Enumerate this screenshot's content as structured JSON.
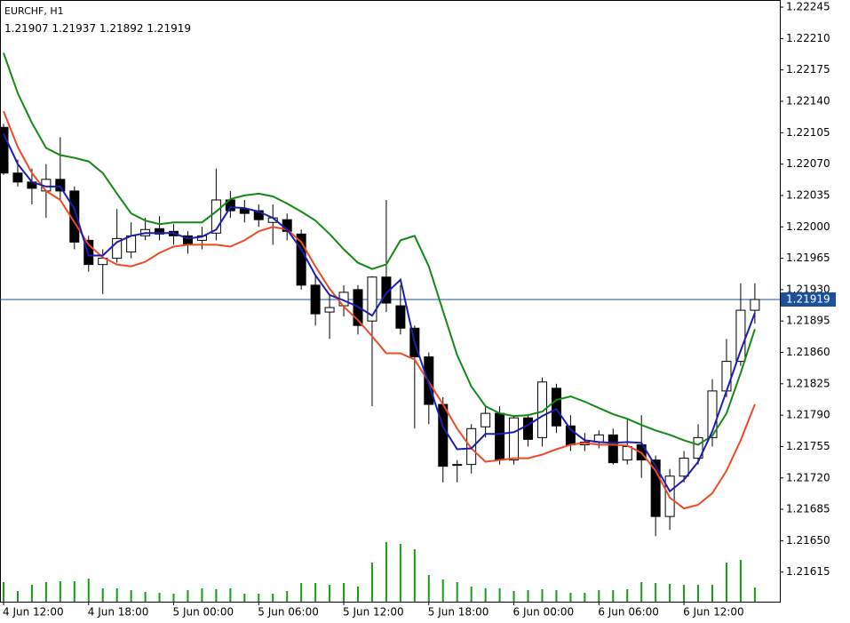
{
  "chart_data": {
    "type": "candlestick",
    "title": "EURCHF, H1",
    "categories": [
      "4 Jun 12:00",
      null,
      null,
      null,
      null,
      null,
      "4 Jun 18:00",
      null,
      null,
      null,
      null,
      null,
      "5 Jun 00:00",
      null,
      null,
      null,
      null,
      null,
      "5 Jun 06:00",
      null,
      null,
      null,
      null,
      null,
      "5 Jun 12:00",
      null,
      null,
      null,
      null,
      null,
      "5 Jun 18:00",
      null,
      null,
      null,
      null,
      null,
      "6 Jun 00:00",
      null,
      null,
      null,
      null,
      null,
      "6 Jun 06:00",
      null,
      null,
      null,
      null,
      null,
      "6 Jun 12:00",
      null,
      null,
      null,
      null,
      null
    ],
    "open": [
      1.22111,
      1.2206,
      1.2205,
      1.2204,
      1.22053,
      1.2204,
      1.21985,
      1.21958,
      1.21965,
      1.21972,
      1.2199,
      1.21998,
      1.21995,
      1.2199,
      1.21985,
      1.21993,
      1.2203,
      1.2202,
      1.22018,
      1.22005,
      1.22008,
      1.21992,
      1.21935,
      1.21905,
      1.21912,
      1.2193,
      1.21895,
      1.21944,
      1.21912,
      1.21887,
      1.21855,
      1.21802,
      1.21735,
      1.21735,
      1.21777,
      1.21792,
      1.2174,
      1.21787,
      1.21765,
      1.2182,
      1.21778,
      1.21757,
      1.2176,
      1.21768,
      1.2174,
      1.21757,
      1.2174,
      1.21677,
      1.21722,
      1.21742,
      1.21765,
      1.21817,
      1.2185,
      1.21907
    ],
    "high": [
      1.22115,
      1.22075,
      1.22065,
      1.2207,
      1.221,
      1.22045,
      1.2199,
      1.21975,
      1.2202,
      1.22005,
      1.2201,
      1.22012,
      1.22003,
      1.21995,
      1.22,
      1.22065,
      1.2204,
      1.2203,
      1.22025,
      1.22025,
      1.22015,
      1.21997,
      1.21945,
      1.21925,
      1.21935,
      1.21935,
      1.21945,
      1.2203,
      1.21935,
      1.2189,
      1.2186,
      1.2181,
      1.2174,
      1.2178,
      1.218,
      1.218,
      1.2179,
      1.2179,
      1.21832,
      1.21825,
      1.2179,
      1.2177,
      1.21773,
      1.21775,
      1.21785,
      1.2179,
      1.21745,
      1.2173,
      1.2175,
      1.2178,
      1.2183,
      1.21875,
      1.21937,
      1.21937
    ],
    "low": [
      1.22058,
      1.22045,
      1.22025,
      1.2201,
      1.2203,
      1.21975,
      1.2195,
      1.21925,
      1.2196,
      1.21965,
      1.21985,
      1.21985,
      1.2198,
      1.2197,
      1.21975,
      1.21985,
      1.2201,
      1.22005,
      1.22,
      1.2198,
      1.21985,
      1.2193,
      1.2189,
      1.21875,
      1.219,
      1.2188,
      1.218,
      1.21905,
      1.2188,
      1.21775,
      1.2178,
      1.21715,
      1.21715,
      1.21725,
      1.21765,
      1.21735,
      1.21735,
      1.21755,
      1.21755,
      1.2177,
      1.2175,
      1.2175,
      1.21753,
      1.21735,
      1.21735,
      1.2172,
      1.21655,
      1.21662,
      1.21715,
      1.21735,
      1.21755,
      1.2181,
      1.21845,
      1.21892
    ],
    "close": [
      1.2206,
      1.2205,
      1.22043,
      1.22053,
      1.2204,
      1.21983,
      1.21958,
      1.21965,
      1.21987,
      1.2199,
      1.21997,
      1.21992,
      1.2199,
      1.2198,
      1.2199,
      1.2203,
      1.22018,
      1.22015,
      1.22008,
      1.2201,
      1.21995,
      1.21935,
      1.21903,
      1.2191,
      1.21927,
      1.2189,
      1.21944,
      1.21915,
      1.21887,
      1.21855,
      1.21802,
      1.21733,
      1.21735,
      1.21775,
      1.21792,
      1.2174,
      1.21787,
      1.21763,
      1.21827,
      1.21778,
      1.21757,
      1.2176,
      1.21768,
      1.21737,
      1.21755,
      1.2174,
      1.21677,
      1.21722,
      1.21742,
      1.21765,
      1.21817,
      1.2185,
      1.21907,
      1.21919
    ],
    "series": [
      {
        "color": "#138a13",
        "values": [
          1.22194,
          1.22149,
          1.22116,
          1.22088,
          1.2208,
          1.22077,
          1.22073,
          1.2206,
          1.22037,
          1.22015,
          1.22007,
          1.22003,
          1.22005,
          1.22005,
          1.22005,
          1.22017,
          1.22031,
          1.22035,
          1.22037,
          1.22034,
          1.22026,
          1.22017,
          1.22007,
          1.21992,
          1.21975,
          1.2196,
          1.21953,
          1.21958,
          1.21985,
          1.2199,
          1.21956,
          1.21906,
          1.21857,
          1.21822,
          1.218,
          1.21792,
          1.21789,
          1.2179,
          1.21794,
          1.21807,
          1.21811,
          1.21805,
          1.21798,
          1.21791,
          1.21786,
          1.21779,
          1.21773,
          1.21768,
          1.21762,
          1.21757,
          1.21767,
          1.21792,
          1.21837,
          1.21886
        ]
      },
      {
        "color": "#ef4a24",
        "values": [
          1.22129,
          1.22089,
          1.2206,
          1.2204,
          1.2203,
          1.22005,
          1.2198,
          1.21966,
          1.21958,
          1.21956,
          1.21961,
          1.21971,
          1.21978,
          1.2198,
          1.2198,
          1.2198,
          1.21978,
          1.21985,
          1.21995,
          1.22,
          1.21997,
          1.21983,
          1.21956,
          1.21931,
          1.21911,
          1.21896,
          1.21878,
          1.21859,
          1.21859,
          1.21852,
          1.21827,
          1.21802,
          1.21775,
          1.21753,
          1.21738,
          1.2174,
          1.21742,
          1.21742,
          1.21746,
          1.21752,
          1.21757,
          1.21759,
          1.21757,
          1.21757,
          1.21756,
          1.21748,
          1.21728,
          1.21698,
          1.21686,
          1.2169,
          1.21703,
          1.21728,
          1.21762,
          1.21802
        ]
      },
      {
        "color": "#1d1db0",
        "values": [
          1.22104,
          1.2207,
          1.2205,
          1.22045,
          1.22045,
          1.2202,
          1.21968,
          1.21968,
          1.21983,
          1.2199,
          1.21993,
          1.21993,
          1.21993,
          1.21987,
          1.21989,
          1.21997,
          1.22022,
          1.22021,
          1.22017,
          1.2201,
          1.21997,
          1.21975,
          1.21946,
          1.21924,
          1.21918,
          1.21911,
          1.21901,
          1.21926,
          1.21941,
          1.21871,
          1.21825,
          1.21777,
          1.21752,
          1.21753,
          1.21769,
          1.21769,
          1.21771,
          1.21779,
          1.21789,
          1.21797,
          1.21774,
          1.21762,
          1.2176,
          1.21759,
          1.2176,
          1.21759,
          1.21733,
          1.21705,
          1.21718,
          1.21738,
          1.21772,
          1.21817,
          1.21862,
          1.21904
        ]
      }
    ],
    "volume": {
      "color": "#11a011",
      "values": [
        22,
        12,
        19,
        22,
        23,
        23,
        26,
        15,
        15,
        13,
        11,
        10,
        9,
        13,
        15,
        14,
        15,
        9,
        9,
        9,
        12,
        21,
        21,
        19,
        21,
        17,
        44,
        67,
        65,
        59,
        30,
        25,
        22,
        17,
        15,
        15,
        12,
        13,
        14,
        13,
        10,
        10,
        13,
        13,
        14,
        22,
        21,
        20,
        19,
        19,
        19,
        44,
        47,
        16
      ]
    },
    "last_price": 1.21919,
    "last_price_color": "#1c4f9c",
    "ylim": [
      1.21582,
      1.22253
    ],
    "yticks": [
      1.22245,
      {
        "value": 1.2221,
        "label": "1.22210"
      },
      1.22175,
      {
        "value": 1.2214,
        "label": "1.22140"
      },
      1.22105,
      {
        "value": 1.2207,
        "label": "1.22070"
      },
      1.22035,
      {
        "value": 1.22,
        "label": "1.22000"
      },
      1.21965,
      {
        "value": 1.2193,
        "label": "1.21930"
      },
      1.21895,
      {
        "value": 1.2186,
        "label": "1.21860"
      },
      1.21825,
      {
        "value": 1.2179,
        "label": "1.21790"
      },
      1.21755,
      {
        "value": 1.2172,
        "label": "1.21720"
      },
      1.21685,
      {
        "value": 1.2165,
        "label": "1.21650"
      },
      1.21615
    ]
  }
}
